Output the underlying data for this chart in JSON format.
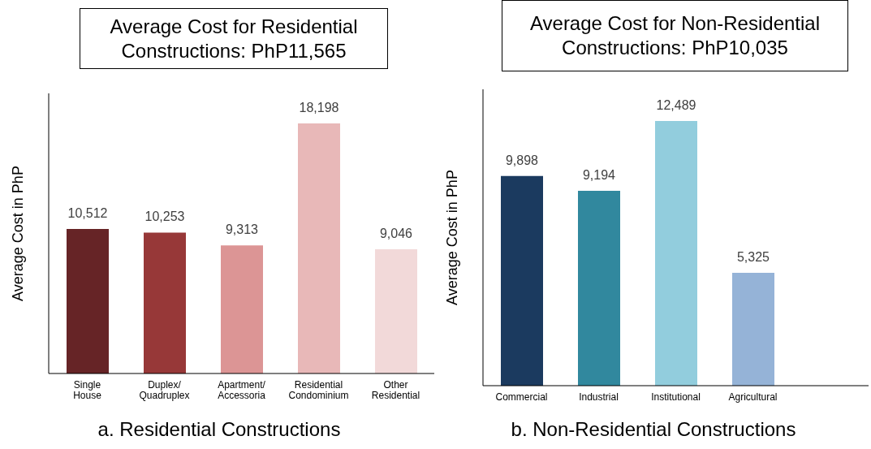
{
  "chart_data": [
    {
      "type": "bar",
      "title": "Average Cost for Residential Constructions: PhP11,565",
      "ylabel": "Average Cost in PhP",
      "categories": [
        "Single House",
        "Duplex/ Quadruplex",
        "Apartment/ Accessoria",
        "Residential Condominium",
        "Other Residential"
      ],
      "values": [
        10512,
        10253,
        9313,
        18198,
        9046
      ],
      "colors": [
        "#662426",
        "#973838",
        "#dc9595",
        "#e8b8b8",
        "#f2d9d9"
      ],
      "value_labels": [
        "10,512",
        "10,253",
        "9,313",
        "18,198",
        "9,046"
      ],
      "grid": false,
      "legend": false,
      "annotations": [
        "a. Residential Constructions"
      ]
    },
    {
      "type": "bar",
      "title": "Average Cost for Non-Residential Constructions:  PhP10,035",
      "ylabel": "Average Cost in PhP",
      "categories": [
        "Commercial",
        "Industrial",
        "Institutional",
        "Agricultural",
        null
      ],
      "values": [
        9898,
        9194,
        12489,
        5325,
        null
      ],
      "colors": [
        "#1b3a5f",
        "#31889e",
        "#92cddd",
        "#95b3d7",
        null
      ],
      "value_labels": [
        "9,898",
        "9,194",
        "12,489",
        "5,325",
        null
      ],
      "grid": false,
      "legend": false,
      "annotations": [
        "b. Non-Residential Constructions"
      ]
    }
  ]
}
